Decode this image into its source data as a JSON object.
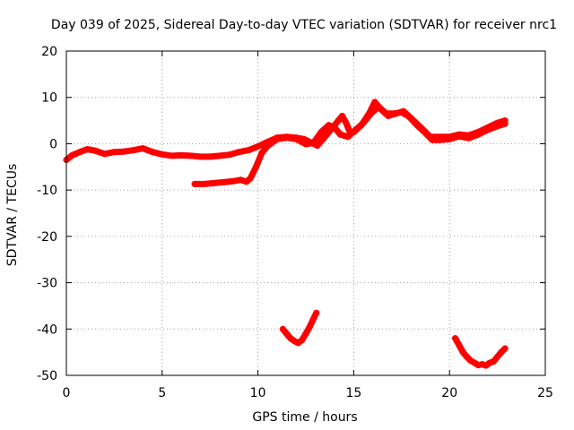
{
  "chart_data": {
    "type": "scatter",
    "title": "Day 039 of 2025, Sidereal Day-to-day VTEC variation (SDTVAR) for receiver nrc1",
    "xlabel": "GPS time / hours",
    "ylabel": "SDTVAR / TECUs",
    "xlim": [
      0,
      25
    ],
    "ylim": [
      -50,
      20
    ],
    "xticks": [
      0,
      5,
      10,
      15,
      20,
      25
    ],
    "yticks": [
      20,
      10,
      0,
      -10,
      -20,
      -30,
      -40,
      -50
    ],
    "grid": true,
    "series": [
      {
        "name": "main-band",
        "color": "#ff0000",
        "points": [
          [
            0.0,
            -3.5
          ],
          [
            0.3,
            -2.5
          ],
          [
            0.7,
            -1.8
          ],
          [
            1.1,
            -1.2
          ],
          [
            1.5,
            -1.5
          ],
          [
            2.0,
            -2.2
          ],
          [
            2.5,
            -1.8
          ],
          [
            3.0,
            -1.7
          ],
          [
            3.5,
            -1.4
          ],
          [
            4.0,
            -1.0
          ],
          [
            4.5,
            -1.8
          ],
          [
            5.0,
            -2.3
          ],
          [
            5.5,
            -2.6
          ],
          [
            6.0,
            -2.5
          ],
          [
            6.5,
            -2.6
          ],
          [
            7.0,
            -2.8
          ],
          [
            7.5,
            -2.8
          ],
          [
            8.0,
            -2.6
          ],
          [
            8.5,
            -2.4
          ],
          [
            9.0,
            -1.8
          ],
          [
            9.5,
            -1.4
          ],
          [
            10.0,
            -0.6
          ],
          [
            10.5,
            0.4
          ],
          [
            11.0,
            1.3
          ],
          [
            11.5,
            1.5
          ],
          [
            12.0,
            1.3
          ],
          [
            12.4,
            1.0
          ],
          [
            12.8,
            0.2
          ],
          [
            13.1,
            -0.4
          ],
          [
            13.4,
            1.0
          ],
          [
            13.8,
            3.0
          ],
          [
            14.2,
            5.0
          ],
          [
            14.4,
            6.0
          ],
          [
            14.6,
            4.5
          ],
          [
            14.8,
            2.5
          ],
          [
            15.0,
            2.5
          ],
          [
            15.4,
            4.0
          ],
          [
            15.8,
            6.5
          ],
          [
            16.1,
            9.0
          ],
          [
            16.4,
            7.5
          ],
          [
            16.8,
            6.0
          ],
          [
            17.2,
            6.5
          ],
          [
            17.6,
            7.0
          ],
          [
            18.0,
            5.5
          ],
          [
            18.5,
            3.5
          ],
          [
            19.0,
            1.5
          ],
          [
            19.5,
            1.5
          ],
          [
            20.0,
            1.5
          ],
          [
            20.5,
            2.0
          ],
          [
            21.0,
            1.8
          ],
          [
            21.5,
            2.5
          ],
          [
            22.0,
            3.5
          ],
          [
            22.5,
            4.5
          ],
          [
            22.9,
            5.0
          ]
        ]
      },
      {
        "name": "lower-branch",
        "color": "#ff0000",
        "points": [
          [
            6.7,
            -8.7
          ],
          [
            7.2,
            -8.7
          ],
          [
            7.7,
            -8.5
          ],
          [
            8.2,
            -8.3
          ],
          [
            8.7,
            -8.1
          ],
          [
            9.1,
            -7.8
          ],
          [
            9.4,
            -8.2
          ],
          [
            9.6,
            -7.5
          ],
          [
            9.9,
            -5.0
          ],
          [
            10.2,
            -2.0
          ],
          [
            10.5,
            -0.5
          ],
          [
            11.0,
            1.0
          ],
          [
            11.5,
            1.3
          ],
          [
            12.0,
            1.0
          ],
          [
            12.5,
            -0.1
          ],
          [
            12.9,
            0.2
          ],
          [
            13.3,
            2.5
          ],
          [
            13.7,
            4.0
          ],
          [
            14.0,
            3.5
          ],
          [
            14.3,
            2.0
          ],
          [
            14.7,
            1.5
          ],
          [
            15.1,
            3.0
          ],
          [
            15.5,
            4.5
          ],
          [
            15.9,
            6.5
          ],
          [
            16.3,
            8.0
          ],
          [
            16.7,
            6.5
          ],
          [
            17.1,
            6.5
          ],
          [
            17.5,
            6.8
          ],
          [
            17.9,
            5.8
          ],
          [
            18.3,
            4.0
          ],
          [
            18.7,
            2.5
          ],
          [
            19.1,
            0.8
          ],
          [
            19.5,
            0.8
          ],
          [
            20.0,
            1.0
          ],
          [
            20.5,
            1.6
          ],
          [
            21.0,
            1.2
          ],
          [
            21.5,
            2.0
          ],
          [
            22.0,
            3.0
          ],
          [
            22.5,
            3.8
          ],
          [
            22.9,
            4.3
          ]
        ]
      },
      {
        "name": "dip-1",
        "color": "#ff0000",
        "points": [
          [
            11.3,
            -40.0
          ],
          [
            11.5,
            -41.0
          ],
          [
            11.7,
            -42.0
          ],
          [
            11.9,
            -42.6
          ],
          [
            12.1,
            -43.0
          ],
          [
            12.3,
            -42.4
          ],
          [
            12.5,
            -41.0
          ],
          [
            12.7,
            -39.5
          ],
          [
            12.9,
            -37.8
          ],
          [
            13.05,
            -36.5
          ]
        ]
      },
      {
        "name": "dip-2",
        "color": "#ff0000",
        "points": [
          [
            20.3,
            -42.0
          ],
          [
            20.5,
            -43.5
          ],
          [
            20.7,
            -45.0
          ],
          [
            20.9,
            -46.0
          ],
          [
            21.1,
            -46.8
          ],
          [
            21.3,
            -47.3
          ],
          [
            21.5,
            -47.8
          ],
          [
            21.7,
            -47.6
          ],
          [
            21.9,
            -47.9
          ],
          [
            22.1,
            -47.3
          ],
          [
            22.3,
            -47.0
          ],
          [
            22.5,
            -46.0
          ],
          [
            22.7,
            -45.0
          ],
          [
            22.9,
            -44.2
          ]
        ]
      }
    ]
  }
}
